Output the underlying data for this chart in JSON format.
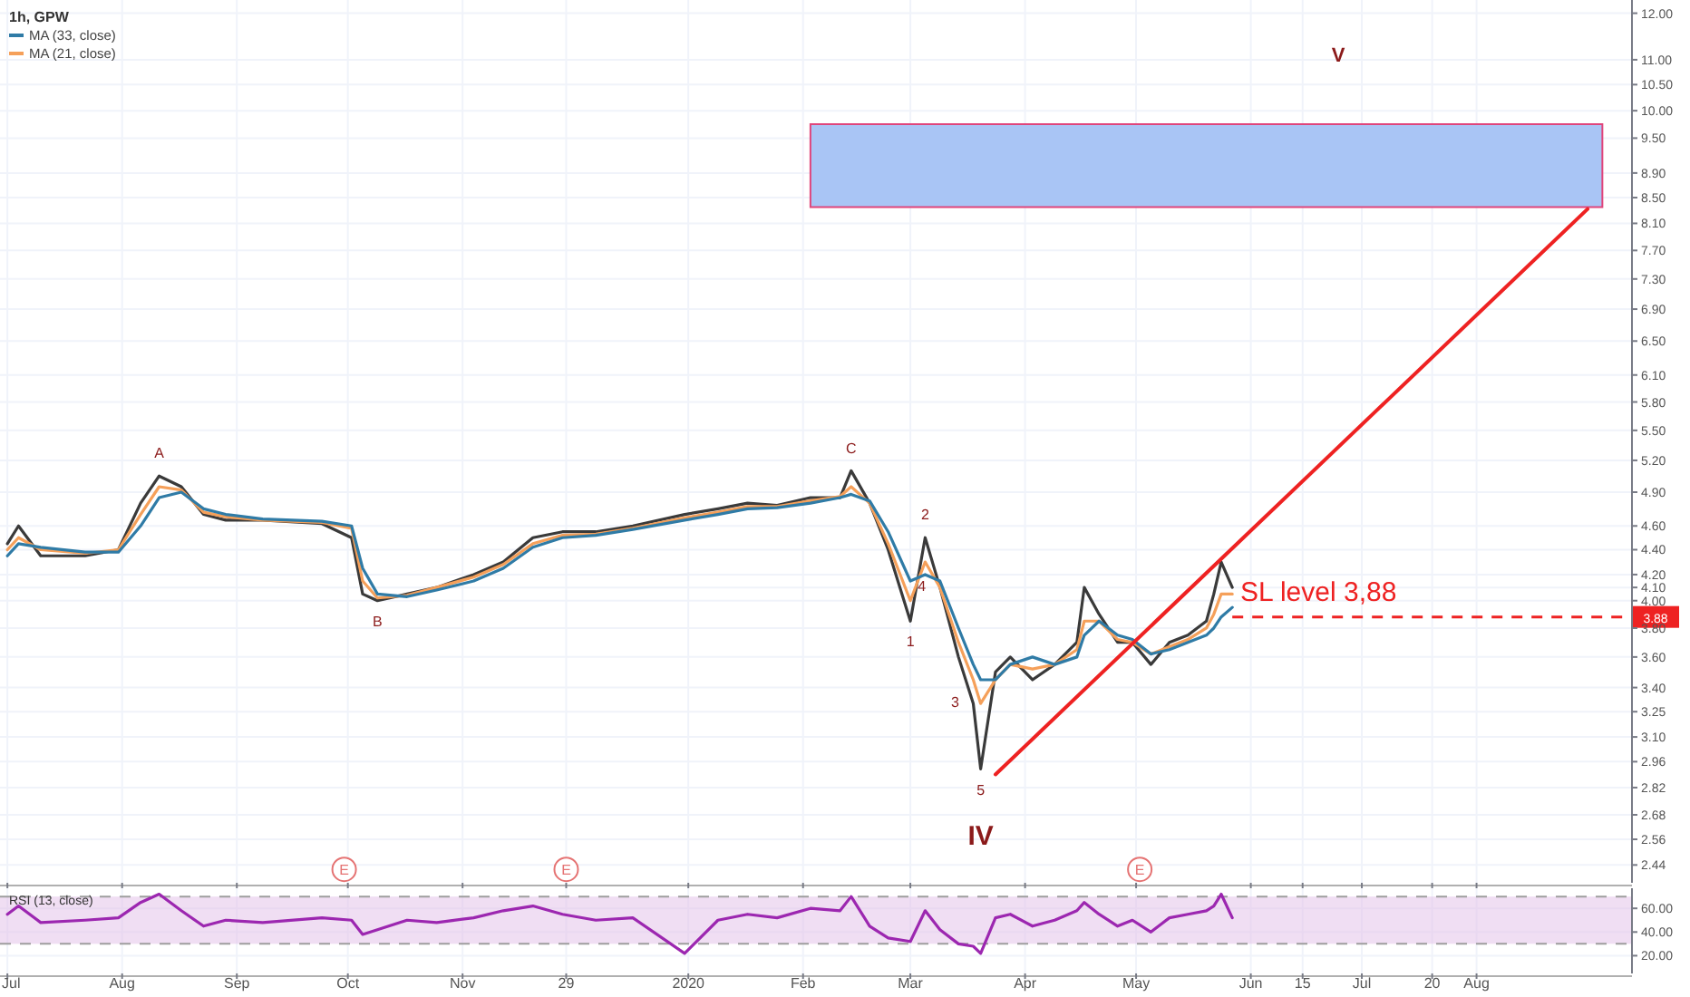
{
  "chart_data": [
    {
      "type": "line",
      "title": "1h, GPW",
      "log": "y",
      "grid": true,
      "legend": "top left",
      "tick_labels": "y",
      "xlim": [
        "2019-06-29",
        "2020-09-12"
      ],
      "xticks": [
        {
          "value": "2019-07-01",
          "label": null
        },
        {
          "value": "2019-08-01",
          "label": null
        },
        {
          "value": "2019-09-01",
          "label": null
        },
        {
          "value": "2019-10-01",
          "label": null
        },
        {
          "value": "2019-11-01",
          "label": null
        },
        {
          "value": "2019-11-29",
          "label": null
        },
        {
          "value": "2020-01-01",
          "label": null
        },
        {
          "value": "2020-02-01",
          "label": null
        },
        {
          "value": "2020-03-01",
          "label": null
        },
        {
          "value": "2020-04-01",
          "label": null
        },
        {
          "value": "2020-05-01",
          "label": null
        },
        {
          "value": "2020-06-01",
          "label": null
        },
        {
          "value": "2020-06-15",
          "label": null
        },
        {
          "value": "2020-07-01",
          "label": null
        },
        {
          "value": "2020-07-20",
          "label": null
        },
        {
          "value": "2020-08-01",
          "label": null
        }
      ],
      "ylim": [
        2.36,
        12.3
      ],
      "yticks": [
        {
          "value": 12,
          "label": "12.00"
        },
        {
          "value": 11,
          "label": "11.00"
        },
        {
          "value": 10.5,
          "label": "10.50"
        },
        {
          "value": 10,
          "label": "10.00"
        },
        {
          "value": 9.5,
          "label": "9.50"
        },
        {
          "value": 8.9,
          "label": "8.90"
        },
        {
          "value": 8.5,
          "label": "8.50"
        },
        {
          "value": 8.1,
          "label": "8.10"
        },
        {
          "value": 7.7,
          "label": "7.70"
        },
        {
          "value": 7.3,
          "label": "7.30"
        },
        {
          "value": 6.9,
          "label": "6.90"
        },
        {
          "value": 6.5,
          "label": "6.50"
        },
        {
          "value": 6.1,
          "label": "6.10"
        },
        {
          "value": 5.8,
          "label": "5.80"
        },
        {
          "value": 5.5,
          "label": "5.50"
        },
        {
          "value": 5.2,
          "label": "5.20"
        },
        {
          "value": 4.9,
          "label": "4.90"
        },
        {
          "value": 4.6,
          "label": "4.60"
        },
        {
          "value": 4.4,
          "label": "4.40"
        },
        {
          "value": 4.2,
          "label": "4.20"
        },
        {
          "value": 4.1,
          "label": "4.10"
        },
        {
          "value": 4,
          "label": "4.00"
        },
        {
          "value": 3.8,
          "label": "3.80"
        },
        {
          "value": 3.6,
          "label": "3.60"
        },
        {
          "value": 3.4,
          "label": "3.40"
        },
        {
          "value": 3.25,
          "label": "3.25"
        },
        {
          "value": 3.1,
          "label": "3.10"
        },
        {
          "value": 2.96,
          "label": "2.96"
        },
        {
          "value": 2.82,
          "label": "2.82"
        },
        {
          "value": 2.68,
          "label": "2.68"
        },
        {
          "value": 2.56,
          "label": "2.56"
        },
        {
          "value": 2.44,
          "label": "2.44"
        }
      ],
      "x": [
        "2019-07-01",
        "2019-07-04",
        "2019-07-10",
        "2019-07-22",
        "2019-07-31",
        "2019-08-06",
        "2019-08-11",
        "2019-08-17",
        "2019-08-23",
        "2019-08-29",
        "2019-09-08",
        "2019-09-24",
        "2019-10-02",
        "2019-10-05",
        "2019-10-09",
        "2019-10-17",
        "2019-10-25",
        "2019-11-04",
        "2019-11-12",
        "2019-11-20",
        "2019-11-28",
        "2019-12-07",
        "2019-12-17",
        "2019-12-31",
        "2020-01-09",
        "2020-01-17",
        "2020-01-25",
        "2020-02-03",
        "2020-02-11",
        "2020-02-14",
        "2020-02-19",
        "2020-02-24",
        "2020-03-01",
        "2020-03-05",
        "2020-03-09",
        "2020-03-14",
        "2020-03-18",
        "2020-03-20",
        "2020-03-24",
        "2020-03-28",
        "2020-04-03",
        "2020-04-09",
        "2020-04-15",
        "2020-04-17",
        "2020-04-21",
        "2020-04-26",
        "2020-04-30",
        "2020-05-05",
        "2020-05-10",
        "2020-05-15",
        "2020-05-20",
        "2020-05-22",
        "2020-05-24",
        "2020-05-27"
      ],
      "series": [
        {
          "color": "#3a3a3a",
          "values": [
            4.45,
            4.6,
            4.35,
            4.35,
            4.4,
            4.8,
            5.05,
            4.95,
            4.7,
            4.65,
            4.65,
            4.62,
            4.5,
            4.05,
            4.0,
            4.05,
            4.1,
            4.2,
            4.3,
            4.5,
            4.55,
            4.55,
            4.6,
            4.7,
            4.75,
            4.8,
            4.78,
            4.85,
            4.85,
            5.1,
            4.8,
            4.4,
            3.85,
            4.5,
            4.1,
            3.6,
            3.3,
            2.92,
            3.5,
            3.6,
            3.45,
            3.55,
            3.7,
            4.1,
            3.9,
            3.7,
            3.7,
            3.55,
            3.7,
            3.75,
            3.85,
            4.05,
            4.3,
            4.1
          ]
        },
        {
          "name": "MA (21, close)",
          "color": "#f5a05a",
          "values": [
            4.4,
            4.5,
            4.4,
            4.37,
            4.4,
            4.7,
            4.95,
            4.92,
            4.72,
            4.68,
            4.65,
            4.63,
            4.58,
            4.15,
            4.02,
            4.04,
            4.1,
            4.18,
            4.28,
            4.45,
            4.52,
            4.53,
            4.58,
            4.67,
            4.72,
            4.77,
            4.77,
            4.82,
            4.86,
            4.95,
            4.8,
            4.45,
            4.0,
            4.3,
            4.1,
            3.7,
            3.45,
            3.3,
            3.45,
            3.55,
            3.52,
            3.55,
            3.65,
            3.85,
            3.85,
            3.72,
            3.7,
            3.62,
            3.67,
            3.72,
            3.8,
            3.9,
            4.05,
            4.05
          ]
        },
        {
          "name": "MA (33, close)",
          "color": "#2f7ba6",
          "values": [
            4.35,
            4.45,
            4.42,
            4.38,
            4.38,
            4.6,
            4.85,
            4.9,
            4.75,
            4.7,
            4.66,
            4.64,
            4.6,
            4.25,
            4.05,
            4.03,
            4.08,
            4.15,
            4.25,
            4.42,
            4.5,
            4.52,
            4.57,
            4.65,
            4.7,
            4.75,
            4.76,
            4.8,
            4.85,
            4.88,
            4.82,
            4.55,
            4.15,
            4.2,
            4.15,
            3.8,
            3.55,
            3.45,
            3.45,
            3.55,
            3.6,
            3.55,
            3.6,
            3.75,
            3.85,
            3.75,
            3.72,
            3.62,
            3.65,
            3.7,
            3.75,
            3.8,
            3.88,
            3.95
          ]
        },
        {
          "type": "area",
          "color": "#a4c2f4",
          "x": [
            "2020-02-03",
            "2020-09-04"
          ],
          "values": [
            null,
            null
          ],
          "lower": [
            8.35,
            8.35
          ],
          "upper": [
            9.75,
            9.75
          ]
        },
        {
          "type": "line",
          "color": "#ee2222",
          "x": [
            "2020-03-24",
            "2020-08-31"
          ],
          "values": [
            2.89,
            8.32
          ]
        },
        {
          "type": "scatter",
          "color": "#e57373",
          "x": [
            "2019-09-30",
            "2019-11-29",
            "2020-05-02"
          ],
          "values": [
            2.42,
            2.42,
            2.42
          ],
          "value_labels": [
            "E",
            "E",
            "E"
          ]
        }
      ],
      "ref_lines": [
        {
          "axis": "y",
          "value": 3.88,
          "label": "SL level 3,88",
          "color": "#ee2222",
          "line_style": "dashed"
        }
      ],
      "annotations": [
        {
          "text": "A",
          "x": "2019-08-11",
          "y": 5.05
        },
        {
          "text": "B",
          "x": "2019-10-09",
          "y": 4.0
        },
        {
          "text": "C",
          "x": "2020-02-14",
          "y": 5.1
        },
        {
          "text": "1",
          "x": "2020-03-01",
          "y": 3.85
        },
        {
          "text": "2",
          "x": "2020-03-05",
          "y": 4.5
        },
        {
          "text": "3",
          "x": "2020-03-18",
          "y": 3.3
        },
        {
          "text": "4",
          "x": "2020-03-09",
          "y": 4.1
        },
        {
          "text": "5",
          "x": "2020-03-20",
          "y": 2.92
        },
        {
          "text": "IV",
          "x": "2020-03-20",
          "y": 2.92
        },
        "V",
        {
          "text": "3.88",
          "y": 3.88
        }
      ]
    },
    {
      "type": "line",
      "title": "RSI (13, close)",
      "grid": true,
      "xlim": [
        "2019-06-29",
        "2020-09-12"
      ],
      "xticks": [
        {
          "value": "2019-07-01",
          "label": "Jul"
        },
        {
          "value": "2019-08-01",
          "label": "Aug"
        },
        {
          "value": "2019-09-01",
          "label": "Sep"
        },
        {
          "value": "2019-10-01",
          "label": "Oct"
        },
        {
          "value": "2019-11-01",
          "label": "Nov"
        },
        {
          "value": "2019-11-29",
          "label": "29"
        },
        {
          "value": "2020-01-01",
          "label": "2020"
        },
        {
          "value": "2020-02-01",
          "label": "Feb"
        },
        {
          "value": "2020-03-01",
          "label": "Mar"
        },
        {
          "value": "2020-04-01",
          "label": "Apr"
        },
        {
          "value": "2020-05-01",
          "label": "May"
        },
        {
          "value": "2020-06-01",
          "label": "Jun"
        },
        {
          "value": "2020-06-15",
          "label": "15"
        },
        {
          "value": "2020-07-01",
          "label": "Jul"
        },
        {
          "value": "2020-07-20",
          "label": "20"
        },
        {
          "value": "2020-08-01",
          "label": "Aug"
        }
      ],
      "ylim": [
        5,
        77
      ],
      "yticks": [
        {
          "value": 20,
          "label": "20.00"
        },
        {
          "value": 40,
          "label": "40.00"
        },
        {
          "value": 60,
          "label": "60.00"
        }
      ],
      "x": [
        "2019-07-01",
        "2019-07-04",
        "2019-07-10",
        "2019-07-22",
        "2019-07-31",
        "2019-08-06",
        "2019-08-11",
        "2019-08-17",
        "2019-08-23",
        "2019-08-29",
        "2019-09-08",
        "2019-09-24",
        "2019-10-02",
        "2019-10-05",
        "2019-10-09",
        "2019-10-17",
        "2019-10-25",
        "2019-11-04",
        "2019-11-12",
        "2019-11-20",
        "2019-11-28",
        "2019-12-07",
        "2019-12-17",
        "2019-12-31",
        "2020-01-09",
        "2020-01-17",
        "2020-01-25",
        "2020-02-03",
        "2020-02-11",
        "2020-02-14",
        "2020-02-19",
        "2020-02-24",
        "2020-03-01",
        "2020-03-05",
        "2020-03-09",
        "2020-03-14",
        "2020-03-18",
        "2020-03-20",
        "2020-03-24",
        "2020-03-28",
        "2020-04-03",
        "2020-04-09",
        "2020-04-15",
        "2020-04-17",
        "2020-04-21",
        "2020-04-26",
        "2020-04-30",
        "2020-05-05",
        "2020-05-10",
        "2020-05-15",
        "2020-05-20",
        "2020-05-22",
        "2020-05-24",
        "2020-05-27"
      ],
      "series": [
        {
          "color": "#9c27b0",
          "values": [
            55,
            62,
            48,
            50,
            52,
            65,
            72,
            58,
            45,
            50,
            48,
            52,
            50,
            38,
            42,
            50,
            48,
            52,
            58,
            62,
            55,
            50,
            52,
            22,
            50,
            55,
            52,
            60,
            58,
            70,
            45,
            35,
            32,
            58,
            42,
            30,
            28,
            22,
            52,
            55,
            45,
            50,
            58,
            65,
            55,
            45,
            50,
            40,
            52,
            55,
            58,
            62,
            72,
            52
          ]
        }
      ],
      "bands": [
        {
          "axis": "y",
          "from": 30,
          "to": 70,
          "color": "#e1bee7"
        }
      ],
      "ref_lines": [
        {
          "axis": "y",
          "value": 70,
          "color": "#9e9e9e",
          "line_style": "dashed"
        },
        {
          "axis": "y",
          "value": 30,
          "color": "#9e9e9e",
          "line_style": "dashed"
        }
      ]
    }
  ]
}
